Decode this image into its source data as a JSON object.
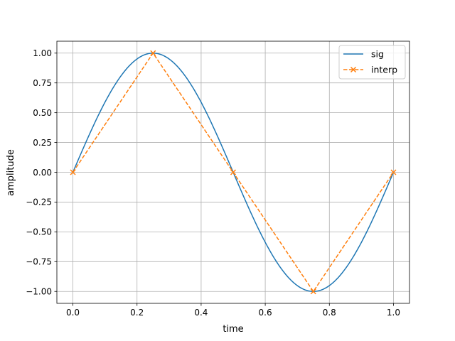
{
  "chart_data": {
    "type": "line",
    "title": "",
    "xlabel": "time",
    "ylabel": "amplitude",
    "xlim": [
      -0.05,
      1.05
    ],
    "ylim": [
      -1.1,
      1.1
    ],
    "x_ticks": [
      0.0,
      0.2,
      0.4,
      0.6,
      0.8,
      1.0
    ],
    "x_tick_labels": [
      "0.0",
      "0.2",
      "0.4",
      "0.6",
      "0.8",
      "1.0"
    ],
    "y_ticks": [
      1.0,
      0.75,
      0.5,
      0.25,
      0.0,
      -0.25,
      -0.5,
      -0.75,
      -1.0
    ],
    "y_tick_labels": [
      "1.00",
      "0.75",
      "0.50",
      "0.25",
      "0.00",
      "−0.25",
      "−0.50",
      "−0.75",
      "−1.00"
    ],
    "grid": true,
    "legend_position": "top-right",
    "series": [
      {
        "name": "sig",
        "color": "#1f77b4",
        "line_style": "solid",
        "marker": "none",
        "x": [
          0.0,
          0.05,
          0.1,
          0.15,
          0.2,
          0.25,
          0.3,
          0.35,
          0.4,
          0.45,
          0.5,
          0.55,
          0.6,
          0.65,
          0.7,
          0.75,
          0.8,
          0.85,
          0.9,
          0.95,
          1.0
        ],
        "y": [
          0.0,
          0.309,
          0.588,
          0.809,
          0.951,
          1.0,
          0.951,
          0.809,
          0.588,
          0.309,
          0.0,
          -0.309,
          -0.588,
          -0.809,
          -0.951,
          -1.0,
          -0.951,
          -0.809,
          -0.588,
          -0.309,
          0.0
        ]
      },
      {
        "name": "interp",
        "color": "#ff7f0e",
        "line_style": "dashed",
        "marker": "x",
        "x": [
          0.0,
          0.25,
          0.5,
          0.75,
          1.0
        ],
        "y": [
          0.0,
          1.0,
          0.0,
          -1.0,
          0.0
        ]
      }
    ]
  }
}
